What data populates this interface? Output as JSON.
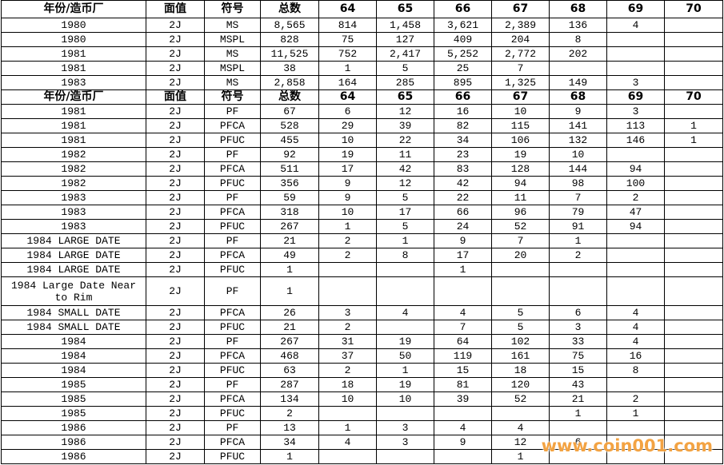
{
  "table": {
    "sections": [
      {
        "header": [
          "年份/造币厂",
          "面值",
          "符号",
          "总数",
          "64",
          "65",
          "66",
          "67",
          "68",
          "69",
          "70"
        ],
        "rows": [
          [
            "1980",
            "2J",
            "MS",
            "8,565",
            "814",
            "1,458",
            "3,621",
            "2,389",
            "136",
            "4",
            null
          ],
          [
            "1980",
            "2J",
            "MSPL",
            "828",
            "75",
            "127",
            "409",
            "204",
            "8",
            null,
            null
          ],
          [
            "1981",
            "2J",
            "MS",
            "11,525",
            "752",
            "2,417",
            "5,252",
            "2,772",
            "202",
            null,
            null
          ],
          [
            "1981",
            "2J",
            "MSPL",
            "38",
            "1",
            "5",
            "25",
            "7",
            null,
            null,
            null
          ],
          [
            "1983",
            "2J",
            "MS",
            "2,858",
            "164",
            "285",
            "895",
            "1,325",
            "149",
            "3",
            null
          ]
        ]
      },
      {
        "header": [
          "年份/造币厂",
          "面值",
          "符号",
          "总数",
          "64",
          "65",
          "66",
          "67",
          "68",
          "69",
          "70"
        ],
        "rows": [
          [
            "1981",
            "2J",
            "PF",
            "67",
            "6",
            "12",
            "16",
            "10",
            "9",
            "3",
            null
          ],
          [
            "1981",
            "2J",
            "PFCA",
            "528",
            "29",
            "39",
            "82",
            "115",
            "141",
            "113",
            "1"
          ],
          [
            "1981",
            "2J",
            "PFUC",
            "455",
            "10",
            "22",
            "34",
            "106",
            "132",
            "146",
            "1"
          ],
          [
            "1982",
            "2J",
            "PF",
            "92",
            "19",
            "11",
            "23",
            "19",
            "10",
            null,
            null
          ],
          [
            "1982",
            "2J",
            "PFCA",
            "511",
            "17",
            "42",
            "83",
            "128",
            "144",
            "94",
            null
          ],
          [
            "1982",
            "2J",
            "PFUC",
            "356",
            "9",
            "12",
            "42",
            "94",
            "98",
            "100",
            null
          ],
          [
            "1983",
            "2J",
            "PF",
            "59",
            "9",
            "5",
            "22",
            "11",
            "7",
            "2",
            null
          ],
          [
            "1983",
            "2J",
            "PFCA",
            "318",
            "10",
            "17",
            "66",
            "96",
            "79",
            "47",
            null
          ],
          [
            "1983",
            "2J",
            "PFUC",
            "267",
            "1",
            "5",
            "24",
            "52",
            "91",
            "94",
            null
          ],
          [
            "1984 LARGE DATE",
            "2J",
            "PF",
            "21",
            "2",
            "1",
            "9",
            "7",
            "1",
            null,
            null
          ],
          [
            "1984 LARGE DATE",
            "2J",
            "PFCA",
            "49",
            "2",
            "8",
            "17",
            "20",
            "2",
            null,
            null
          ],
          [
            "1984 LARGE DATE",
            "2J",
            "PFUC",
            "1",
            null,
            null,
            "1",
            null,
            null,
            null,
            null
          ],
          [
            "1984 Large Date Near to Rim",
            "2J",
            "PF",
            "1",
            null,
            null,
            null,
            null,
            null,
            null,
            null
          ],
          [
            "1984 SMALL DATE",
            "2J",
            "PFCA",
            "26",
            "3",
            "4",
            "4",
            "5",
            "6",
            "4",
            null
          ],
          [
            "1984 SMALL DATE",
            "2J",
            "PFUC",
            "21",
            "2",
            null,
            "7",
            "5",
            "3",
            "4",
            null
          ],
          [
            "1984",
            "2J",
            "PF",
            "267",
            "31",
            "19",
            "64",
            "102",
            "33",
            "4",
            null
          ],
          [
            "1984",
            "2J",
            "PFCA",
            "468",
            "37",
            "50",
            "119",
            "161",
            "75",
            "16",
            null
          ],
          [
            "1984",
            "2J",
            "PFUC",
            "63",
            "2",
            "1",
            "15",
            "18",
            "15",
            "8",
            null
          ],
          [
            "1985",
            "2J",
            "PF",
            "287",
            "18",
            "19",
            "81",
            "120",
            "43",
            null,
            null
          ],
          [
            "1985",
            "2J",
            "PFCA",
            "134",
            "10",
            "10",
            "39",
            "52",
            "21",
            "2",
            null
          ],
          [
            "1985",
            "2J",
            "PFUC",
            "2",
            null,
            null,
            null,
            null,
            "1",
            "1",
            null
          ],
          [
            "1986",
            "2J",
            "PF",
            "13",
            "1",
            "3",
            "4",
            "4",
            null,
            null,
            null
          ],
          [
            "1986",
            "2J",
            "PFCA",
            "34",
            "4",
            "3",
            "9",
            "12",
            "6",
            null,
            null
          ],
          [
            "1986",
            "2J",
            "PFUC",
            "1",
            null,
            null,
            null,
            "1",
            null,
            null,
            null
          ]
        ]
      }
    ]
  },
  "watermark": "www.coin001.com"
}
